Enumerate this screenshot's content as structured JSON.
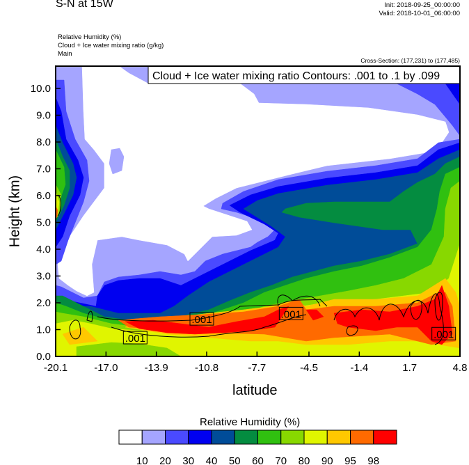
{
  "header": {
    "title": "S-N at 15W",
    "init": "Init: 2018-09-25_00:00:00",
    "valid": "Valid: 2018-10-01_06:00:00",
    "fields": [
      "Relative Humidity   (%)",
      "Cloud + Ice water mixing ratio   (g/kg)",
      "Main"
    ],
    "cross_section": "Cross-Section: (177,231) to (177,485)"
  },
  "chart_data": {
    "type": "heatmap",
    "subtype": "filled-contour cross-section with line contours",
    "title": "S-N at 15W",
    "info_box": "Cloud + Ice water mixing ratio Contours: .001 to .1 by .099",
    "xlabel": "latitude",
    "ylabel": "Height (km)",
    "xlim": [
      -20.1,
      4.8
    ],
    "ylim": [
      0.0,
      10.8
    ],
    "x_ticks": [
      "-20.1",
      "-17.0",
      "-13.9",
      "-10.8",
      "-7.7",
      "-4.5",
      "-1.4",
      "1.7",
      "4.8"
    ],
    "x_tick_values": [
      -20.1,
      -17.0,
      -13.9,
      -10.8,
      -7.7,
      -4.5,
      -1.4,
      1.7,
      4.8
    ],
    "y_ticks": [
      "0.0",
      "1.0",
      "2.0",
      "3.0",
      "4.0",
      "5.0",
      "6.0",
      "7.0",
      "8.0",
      "9.0",
      "10.0"
    ],
    "y_tick_values": [
      0,
      1,
      2,
      3,
      4,
      5,
      6,
      7,
      8,
      9,
      10
    ],
    "colorbar": {
      "title": "Relative Humidity  (%)",
      "levels": [
        "10",
        "20",
        "30",
        "40",
        "50",
        "60",
        "70",
        "80",
        "90",
        "95",
        "98"
      ],
      "colors": [
        "#ffffff",
        "#a5a5ff",
        "#4a4aff",
        "#0000f0",
        "#004c98",
        "#048c40",
        "#30c010",
        "#88d800",
        "#e0f500",
        "#ffc800",
        "#ff6a00",
        "#ff0000"
      ]
    },
    "contour_labels": [
      {
        "text": ".001",
        "lat": -15.2,
        "height": 0.7
      },
      {
        "text": ".001",
        "lat": -11.1,
        "height": 1.4
      },
      {
        "text": ".001",
        "lat": -5.6,
        "height": 1.6
      },
      {
        "text": ".001",
        "lat": 3.8,
        "height": 0.85
      }
    ]
  }
}
